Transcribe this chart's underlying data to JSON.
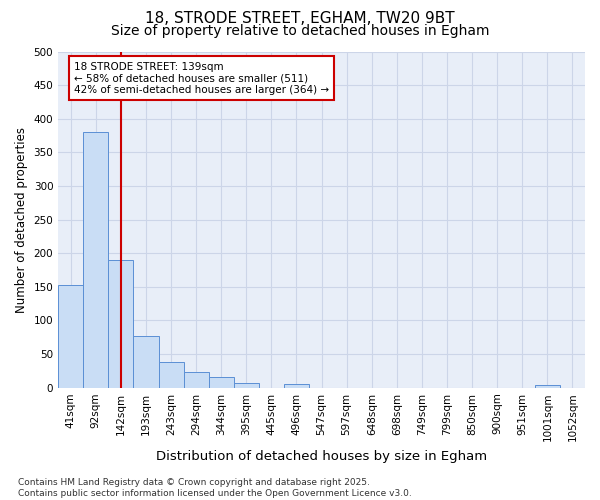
{
  "title1": "18, STRODE STREET, EGHAM, TW20 9BT",
  "title2": "Size of property relative to detached houses in Egham",
  "xlabel": "Distribution of detached houses by size in Egham",
  "ylabel": "Number of detached properties",
  "categories": [
    "41sqm",
    "92sqm",
    "142sqm",
    "193sqm",
    "243sqm",
    "294sqm",
    "344sqm",
    "395sqm",
    "445sqm",
    "496sqm",
    "547sqm",
    "597sqm",
    "648sqm",
    "698sqm",
    "749sqm",
    "799sqm",
    "850sqm",
    "900sqm",
    "951sqm",
    "1001sqm",
    "1052sqm"
  ],
  "values": [
    152,
    380,
    190,
    77,
    38,
    24,
    16,
    7,
    0,
    5,
    0,
    0,
    0,
    0,
    0,
    0,
    0,
    0,
    0,
    4,
    0
  ],
  "bar_color": "#c9ddf5",
  "bar_edge_color": "#5b8fd4",
  "red_line_x": 2,
  "annotation_line1": "18 STRODE STREET: 139sqm",
  "annotation_line2": "← 58% of detached houses are smaller (511)",
  "annotation_line3": "42% of semi-detached houses are larger (364) →",
  "annotation_box_color": "#ffffff",
  "annotation_box_edge": "#cc0000",
  "red_line_color": "#cc0000",
  "ylim": [
    0,
    500
  ],
  "yticks": [
    0,
    50,
    100,
    150,
    200,
    250,
    300,
    350,
    400,
    450,
    500
  ],
  "grid_color": "#ccd5e8",
  "bg_color": "#e8eef8",
  "fig_bg_color": "#ffffff",
  "footer": "Contains HM Land Registry data © Crown copyright and database right 2025.\nContains public sector information licensed under the Open Government Licence v3.0.",
  "title1_fontsize": 11,
  "title2_fontsize": 10,
  "xlabel_fontsize": 9.5,
  "ylabel_fontsize": 8.5,
  "tick_fontsize": 7.5,
  "annotation_fontsize": 7.5,
  "footer_fontsize": 6.5
}
